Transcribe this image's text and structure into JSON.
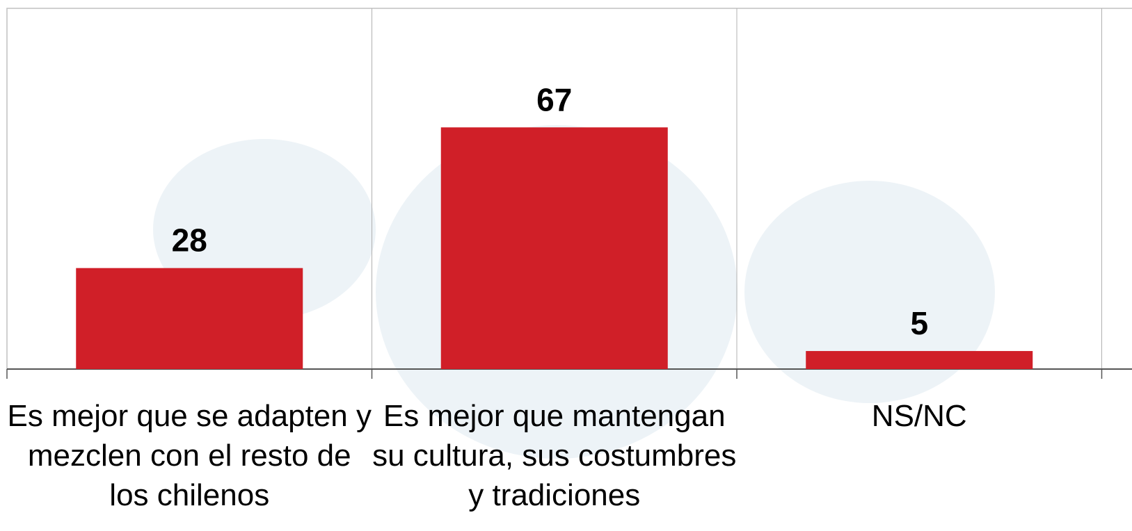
{
  "chart_data": {
    "type": "bar",
    "categories": [
      "Es mejor que se adapten y mezclen con el resto de los chilenos",
      "Es mejor que mantengan su cultura, sus costumbres y tradiciones",
      "NS/NC"
    ],
    "values": [
      28,
      67,
      5
    ],
    "color": "#d01f28",
    "ylim": [
      0,
      100
    ]
  }
}
